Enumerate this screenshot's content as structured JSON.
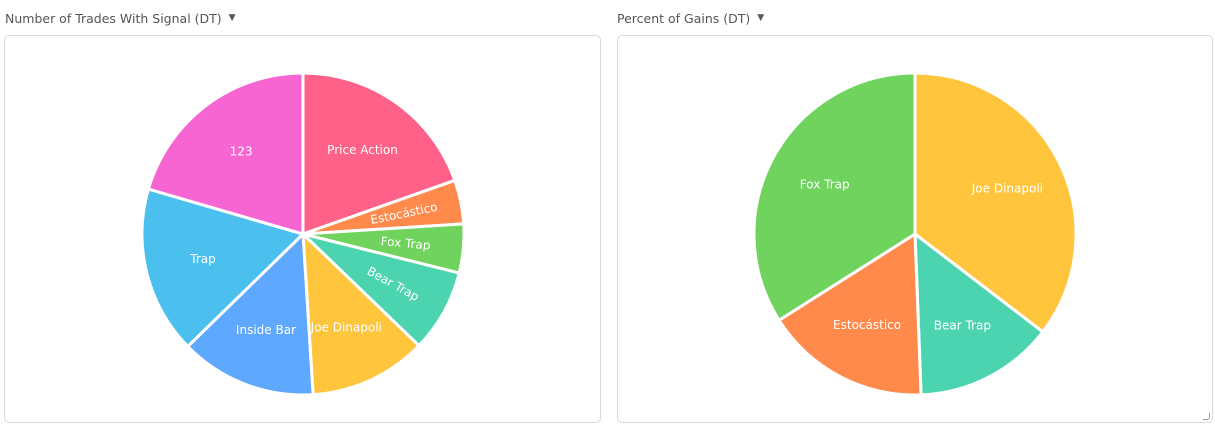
{
  "panels": [
    {
      "title": "Number of Trades With Signal (DT)",
      "caret": "▼"
    },
    {
      "title": "Percent of Gains (DT)",
      "caret": "▼"
    }
  ],
  "chart_data": [
    {
      "type": "pie",
      "title": "Number of Trades With Signal (DT)",
      "slices": [
        {
          "label": "Price Action",
          "value": 19.6,
          "color": "#ff6188"
        },
        {
          "label": "Estocástico",
          "value": 4.4,
          "color": "#ff8a4c"
        },
        {
          "label": "Fox Trap",
          "value": 4.9,
          "color": "#6fd35e"
        },
        {
          "label": "Bear Trap",
          "value": 8.3,
          "color": "#4cd4b0"
        },
        {
          "label": "Joe Dinapoli",
          "value": 11.8,
          "color": "#ffc53d"
        },
        {
          "label": "Inside Bar",
          "value": 13.7,
          "color": "#5ea8ff"
        },
        {
          "label": "Trap",
          "value": 16.8,
          "color": "#4bc0ee"
        },
        {
          "label": "123",
          "value": 20.5,
          "color": "#f765d3"
        }
      ]
    },
    {
      "type": "pie",
      "title": "Percent of Gains (DT)",
      "slices": [
        {
          "label": "Joe Dinapoli",
          "value": 35.4,
          "color": "#ffc53d"
        },
        {
          "label": "Bear Trap",
          "value": 14.0,
          "color": "#4cd4b0"
        },
        {
          "label": "Estocástico",
          "value": 16.6,
          "color": "#ff8a4c"
        },
        {
          "label": "Fox Trap",
          "value": 34.0,
          "color": "#6fd35e"
        }
      ]
    }
  ]
}
